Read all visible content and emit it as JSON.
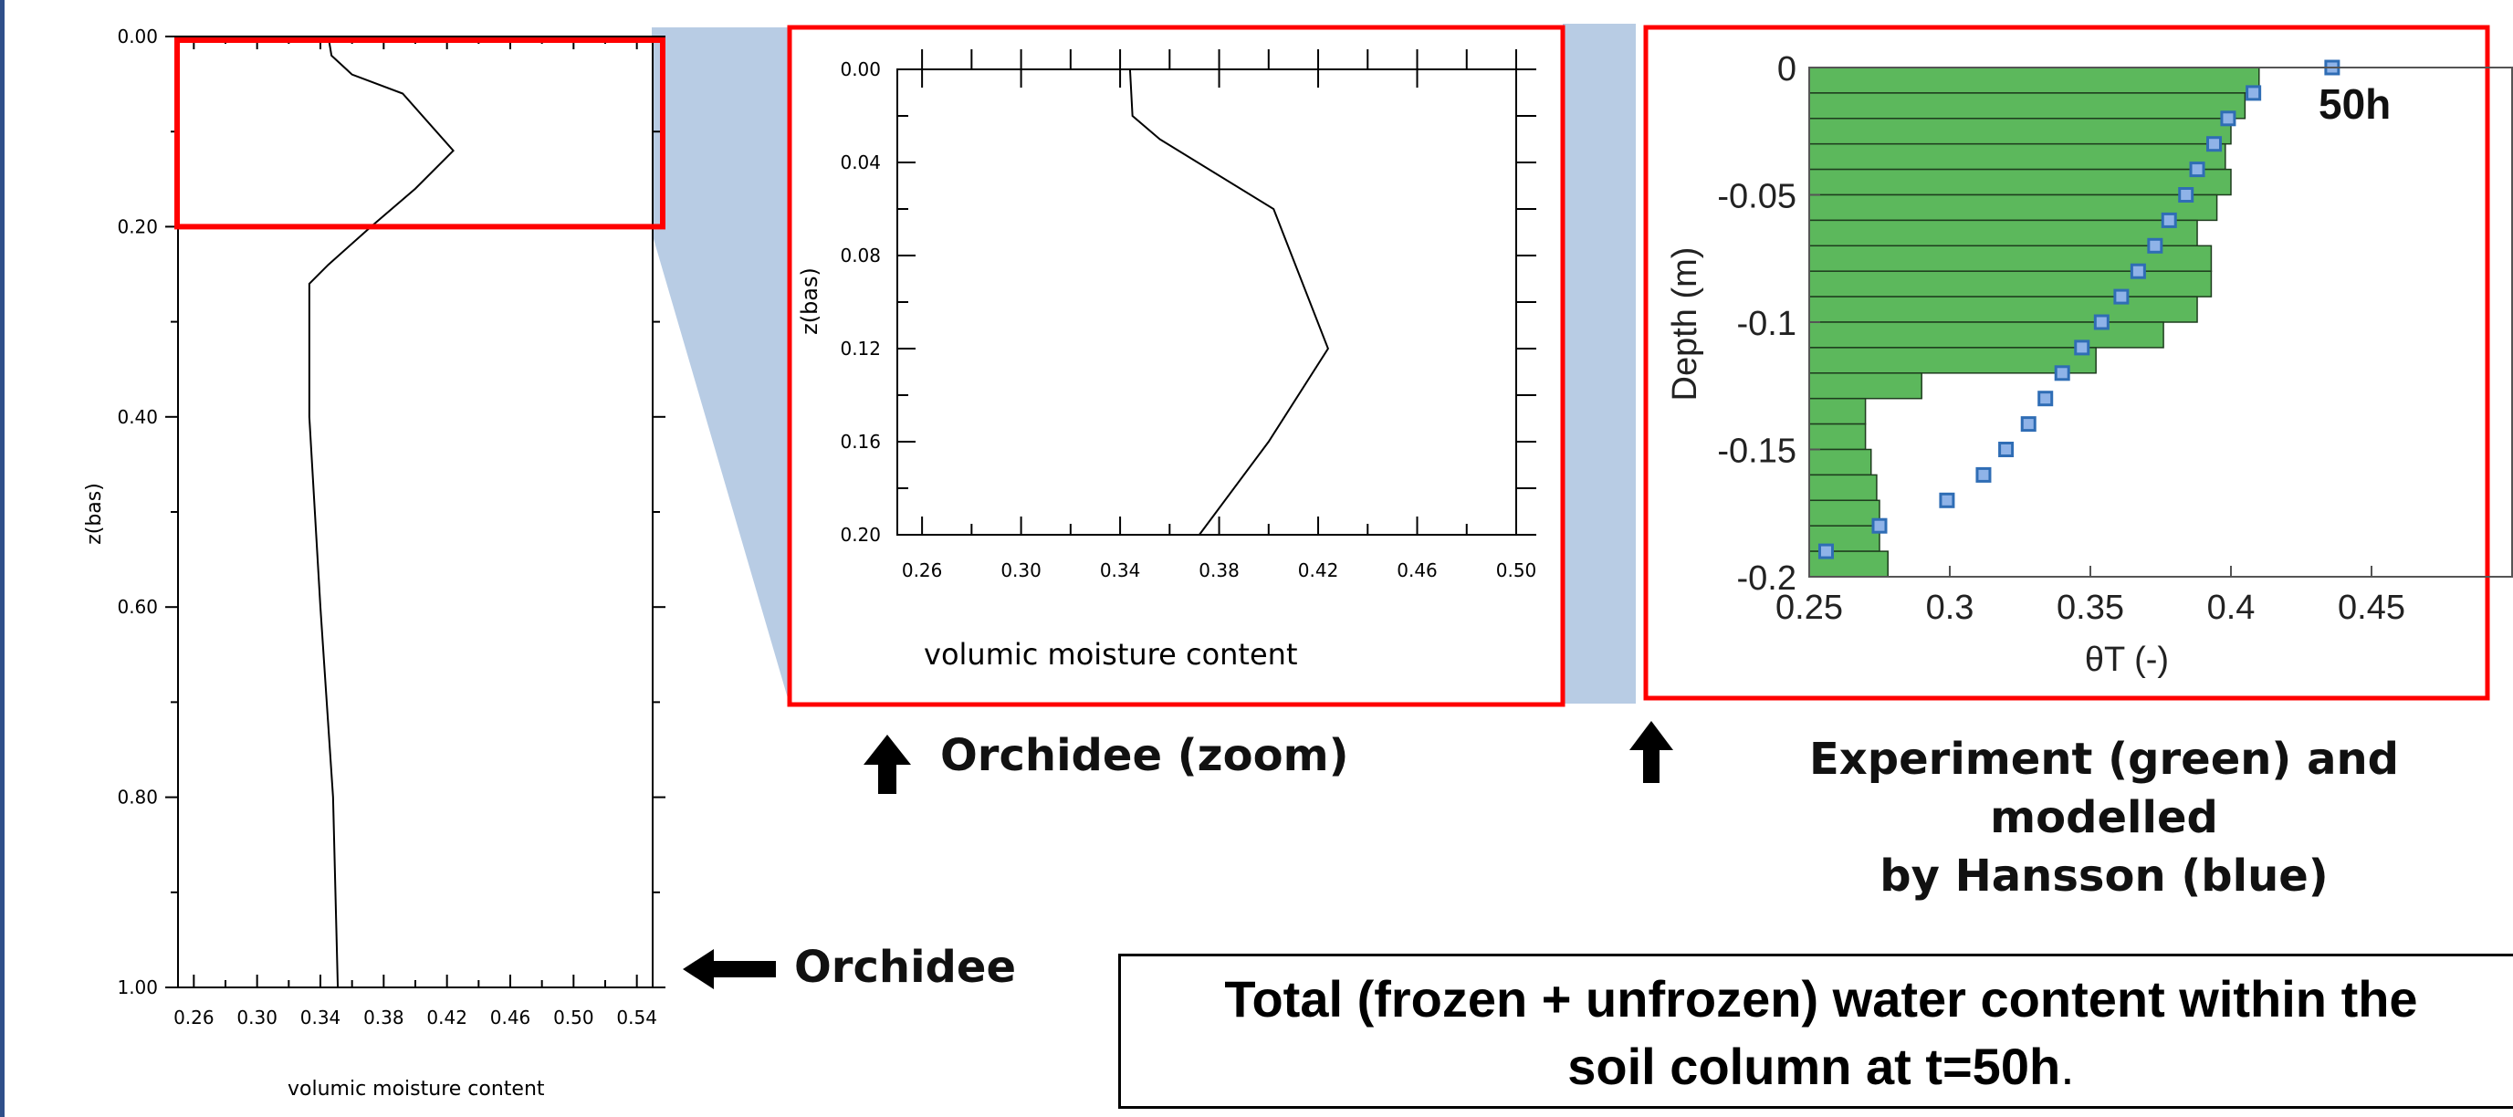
{
  "chart_data": [
    {
      "type": "line",
      "xlabel": "volumic moisture content",
      "ylabel": "z(bas)",
      "xlim": [
        0.25,
        0.55
      ],
      "ylim": [
        0.0,
        1.0
      ],
      "y_inverted": true,
      "xticks": [
        "0.26",
        "0.30",
        "0.34",
        "0.38",
        "0.42",
        "0.46",
        "0.50",
        "0.54"
      ],
      "yticks": [
        "0.00",
        "0.20",
        "0.40",
        "0.60",
        "0.80",
        "1.00"
      ],
      "series": [
        {
          "x": [
            0.345,
            0.347,
            0.36,
            0.392,
            0.424,
            0.4,
            0.372,
            0.345,
            0.333,
            0.333,
            0.34,
            0.348,
            0.351
          ],
          "y": [
            0.0,
            0.02,
            0.04,
            0.06,
            0.12,
            0.16,
            0.2,
            0.24,
            0.26,
            0.4,
            0.6,
            0.8,
            1.0
          ]
        }
      ],
      "highlight_box": {
        "y_from": 0.0,
        "y_to": 0.2
      }
    },
    {
      "type": "line",
      "xlabel": "volumic moisture content",
      "ylabel": "z(bas)",
      "xlim": [
        0.25,
        0.5
      ],
      "ylim": [
        0.0,
        0.2
      ],
      "y_inverted": true,
      "xticks": [
        "0.26",
        "0.30",
        "0.34",
        "0.38",
        "0.42",
        "0.46",
        "0.50"
      ],
      "yticks": [
        "0.00",
        "0.04",
        "0.08",
        "0.12",
        "0.16",
        "0.20"
      ],
      "series": [
        {
          "x": [
            0.344,
            0.345,
            0.356,
            0.402,
            0.424,
            0.4,
            0.372
          ],
          "y": [
            0.0,
            0.02,
            0.03,
            0.06,
            0.12,
            0.16,
            0.2
          ]
        }
      ]
    },
    {
      "type": "bar",
      "orientation": "horizontal",
      "xlabel": "θT (-)",
      "ylabel": "Depth (m)",
      "xlim": [
        0.25,
        0.5
      ],
      "ylim": [
        -0.2,
        0
      ],
      "xticks": [
        "0.25",
        "0.3",
        "0.35",
        "0.4",
        "0.45"
      ],
      "yticks": [
        "0",
        "-0.05",
        "-0.1",
        "-0.15",
        "-0.2"
      ],
      "annotation": "50h",
      "series": [
        {
          "name": "Experiment",
          "color": "#5cb85c",
          "depth_top": [
            0,
            -0.01,
            -0.02,
            -0.03,
            -0.04,
            -0.05,
            -0.06,
            -0.07,
            -0.08,
            -0.09,
            -0.1,
            -0.11,
            -0.12,
            -0.13,
            -0.14,
            -0.15,
            -0.16,
            -0.17,
            -0.18,
            -0.19
          ],
          "values": [
            0.41,
            0.405,
            0.4,
            0.398,
            0.4,
            0.395,
            0.388,
            0.393,
            0.393,
            0.388,
            0.376,
            0.352,
            0.29,
            0.27,
            0.27,
            0.272,
            0.274,
            0.275,
            0.275,
            0.278
          ]
        },
        {
          "name": "Hansson",
          "color": "#2f6db5",
          "depth": [
            0,
            -0.01,
            -0.02,
            -0.03,
            -0.04,
            -0.05,
            -0.06,
            -0.07,
            -0.08,
            -0.09,
            -0.1,
            -0.11,
            -0.12,
            -0.13,
            -0.14,
            -0.15,
            -0.16,
            -0.17,
            -0.18,
            -0.19
          ],
          "values": [
            0.436,
            0.408,
            0.399,
            0.394,
            0.388,
            0.384,
            0.378,
            0.373,
            0.367,
            0.361,
            0.354,
            0.347,
            0.34,
            0.334,
            0.328,
            0.32,
            0.312,
            0.299,
            0.275,
            0.256
          ]
        }
      ]
    }
  ],
  "captions": {
    "zoom": "Orchidee (zoom)",
    "experiment_line1": "Experiment (green) and modelled",
    "experiment_line2": "by Hansson (blue)",
    "orchidee": "Orchidee",
    "summary_part1": "Total (frozen + unfrozen) water content within the",
    "summary_part2": "soil column at t=50h",
    "summary_period": "."
  },
  "colors": {
    "highlight": "#ff0000",
    "projection": "#b8cce4",
    "bar_fill": "#5cb85c",
    "model_marker": "#2f6db5",
    "border": "#2f4f8a"
  }
}
